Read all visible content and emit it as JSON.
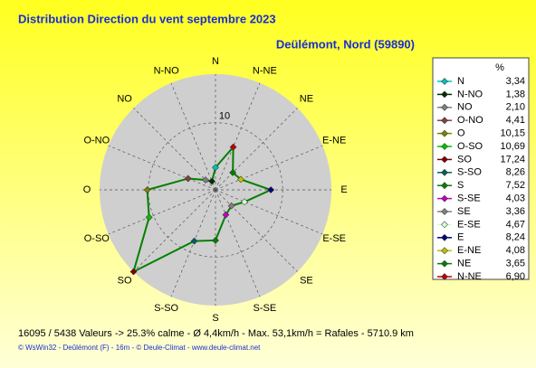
{
  "chart_data": {
    "type": "radar",
    "title": "Distribution Direction du vent   septembre 2023",
    "subtitle": "Deülémont, Nord (59890)",
    "legend_header": "%",
    "categories": [
      "N",
      "N-NO",
      "NO",
      "O-NO",
      "O",
      "O-SO",
      "SO",
      "S-SO",
      "S",
      "S-SE",
      "SE",
      "E-SE",
      "E",
      "E-NE",
      "NE",
      "N-NE"
    ],
    "values": [
      3.34,
      1.38,
      2.1,
      4.41,
      10.15,
      10.69,
      17.24,
      8.26,
      7.52,
      4.03,
      3.36,
      4.67,
      8.24,
      4.08,
      3.65,
      6.9
    ],
    "value_labels": [
      "3,34",
      "1,38",
      "2,10",
      "4,41",
      "10,15",
      "10,69",
      "17,24",
      "8,26",
      "7,52",
      "4,03",
      "3,36",
      "4,67",
      "8,24",
      "4,08",
      "3,65",
      "6,90"
    ],
    "point_colors": [
      "#00c0c0",
      "#003000",
      "#808080",
      "#804040",
      "#808000",
      "#00c000",
      "#800000",
      "#006060",
      "#008000",
      "#c000c0",
      "#808080",
      "#d0ffd0",
      "#000080",
      "#c0c000",
      "#008000",
      "#c00000"
    ],
    "color": "#008000",
    "rlim": [
      0,
      17.24
    ],
    "rticks": [
      10
    ],
    "footer": "16095 / 5438 Valeurs  -> 25.3% calme   -   Ø 4,4km/h   -   Max. 53,1km/h = Rafales    -    5710.9 km",
    "credit": "© WsWin32  -  Deûlémont (F) - 16m  -  © Deule-Climat - www.deule-climat.net"
  }
}
